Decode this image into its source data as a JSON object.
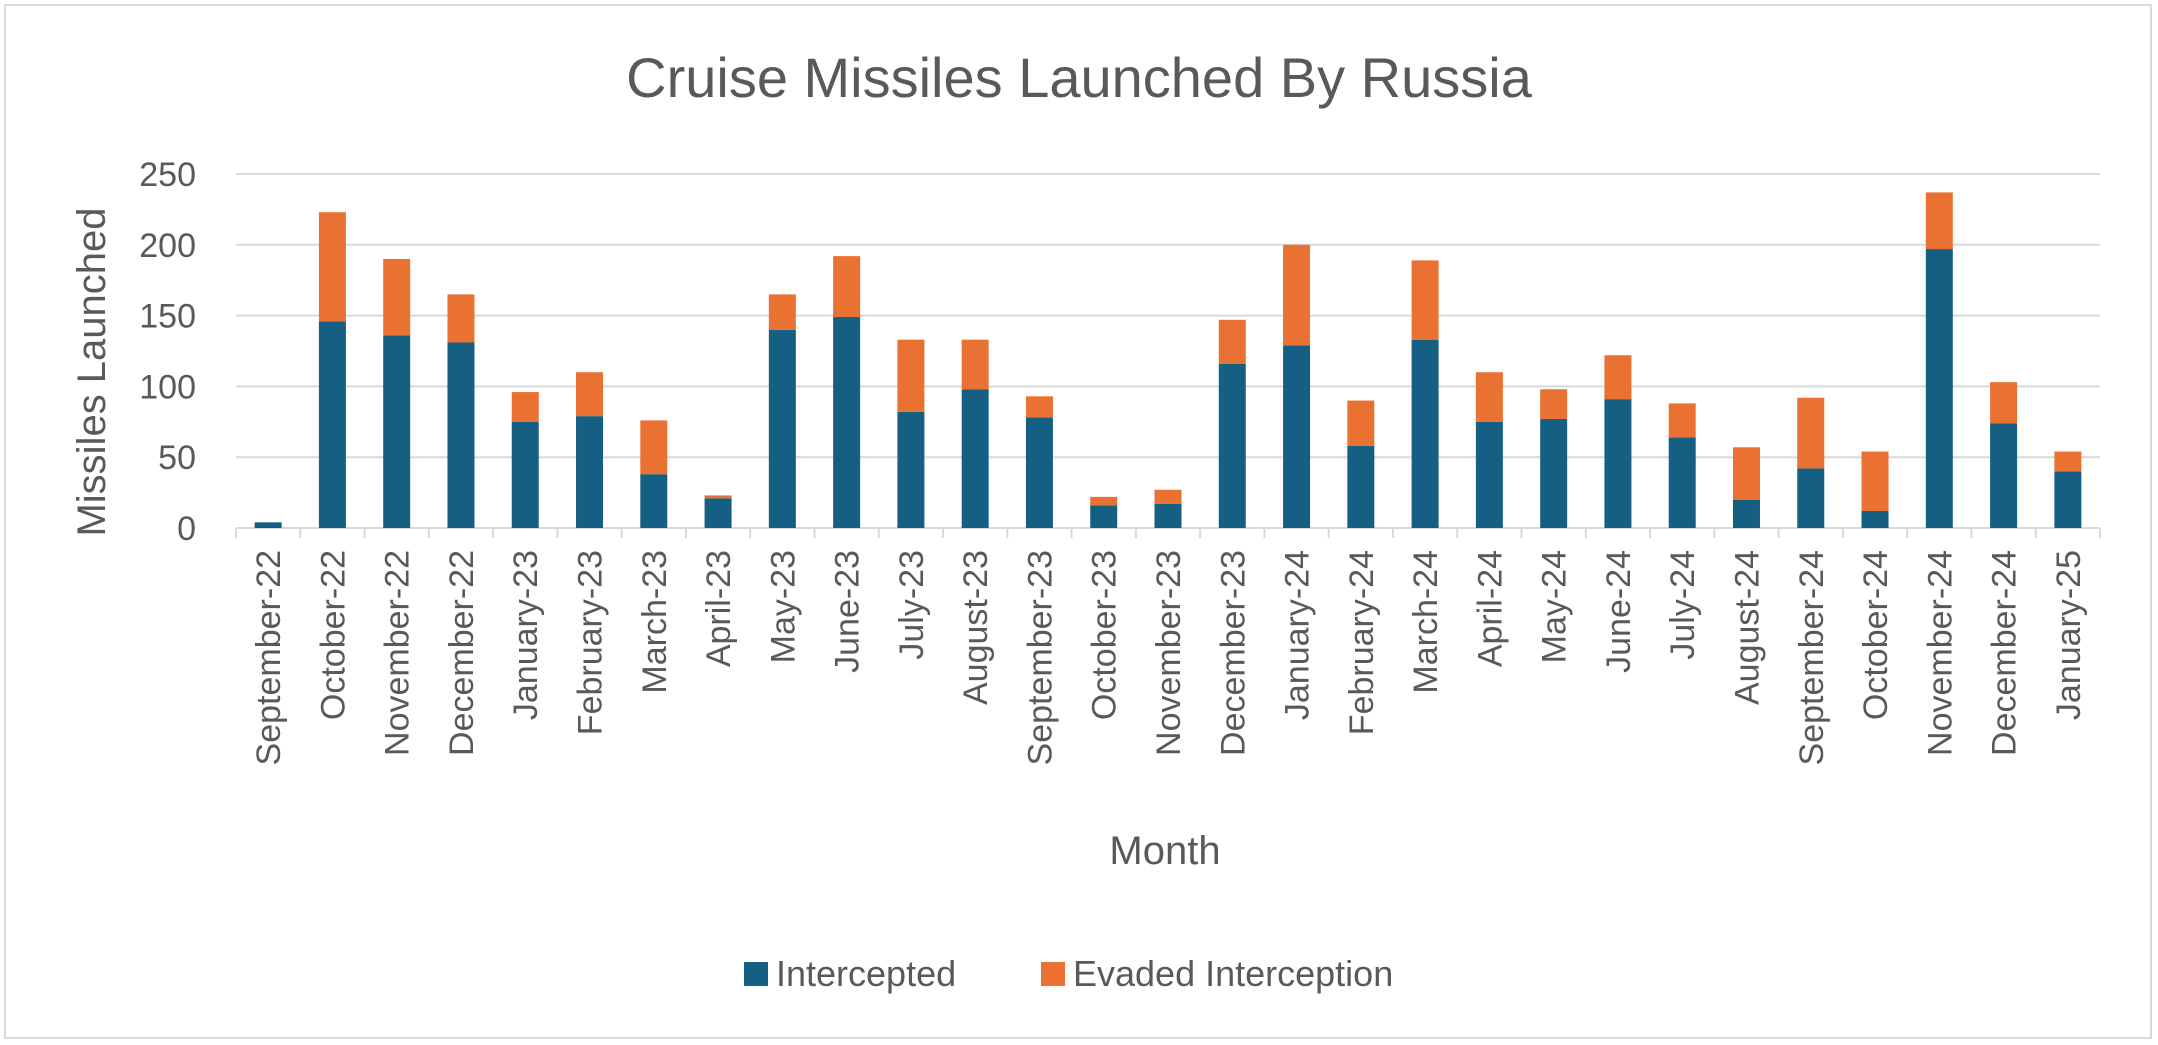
{
  "chart_data": {
    "type": "bar",
    "stacked": true,
    "title": "Cruise Missiles Launched By Russia",
    "xlabel": "Month",
    "ylabel": "Missiles Launched",
    "ylim": [
      0,
      250
    ],
    "yticks": [
      0,
      50,
      100,
      150,
      200,
      250
    ],
    "grid": true,
    "legend_position": "bottom",
    "categories": [
      "September-22",
      "October-22",
      "November-22",
      "December-22",
      "January-23",
      "February-23",
      "March-23",
      "April-23",
      "May-23",
      "June-23",
      "July-23",
      "August-23",
      "September-23",
      "October-23",
      "November-23",
      "December-23",
      "January-24",
      "February-24",
      "March-24",
      "April-24",
      "May-24",
      "June-24",
      "July-24",
      "August-24",
      "September-24",
      "October-24",
      "November-24",
      "December-24",
      "January-25"
    ],
    "series": [
      {
        "name": "Intercepted",
        "color": "#156082",
        "values": [
          4,
          146,
          136,
          131,
          75,
          79,
          38,
          21,
          140,
          149,
          82,
          98,
          78,
          16,
          17,
          116,
          129,
          58,
          133,
          75,
          77,
          91,
          64,
          20,
          42,
          12,
          197,
          74,
          40
        ]
      },
      {
        "name": "Evaded Interception",
        "color": "#E97132",
        "values": [
          0,
          77,
          54,
          34,
          21,
          31,
          38,
          2,
          25,
          43,
          51,
          35,
          15,
          6,
          10,
          31,
          71,
          32,
          56,
          35,
          21,
          31,
          24,
          37,
          50,
          42,
          40,
          29,
          14
        ]
      }
    ]
  }
}
